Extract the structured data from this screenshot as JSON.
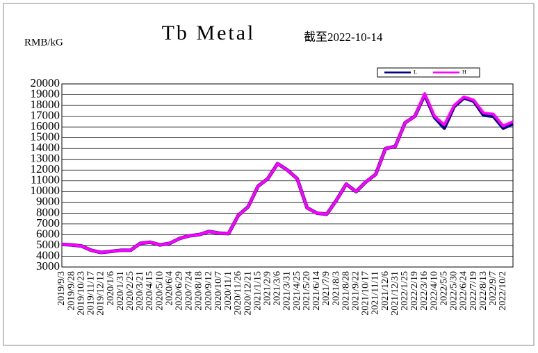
{
  "chart_data": {
    "type": "line",
    "title": "Tb Metal",
    "subtitle": "截至2022-10-14",
    "y_label": "RMB/kG",
    "categories": [
      "2019/9/3",
      "2019/9/28",
      "2019/10/23",
      "2019/11/17",
      "2019/12/12",
      "2020/1/6",
      "2020/1/31",
      "2020/2/25",
      "2020/3/21",
      "2020/4/15",
      "2020/5/10",
      "2020/6/4",
      "2020/6/29",
      "2020/7/24",
      "2020/8/18",
      "2020/9/12",
      "2020/10/7",
      "2020/11/1",
      "2020/11/26",
      "2020/12/21",
      "2021/1/15",
      "2021/2/9",
      "2021/3/6",
      "2021/3/31",
      "2021/4/25",
      "2021/5/20",
      "2021/6/14",
      "2021/7/9",
      "2021/8/3",
      "2021/8/28",
      "2021/9/22",
      "2021/10/17",
      "2021/11/11",
      "2021/12/6",
      "2021/12/31",
      "2022/1/25",
      "2022/2/19",
      "2022/3/16",
      "2022/4/10",
      "2022/5/5",
      "2022/5/30",
      "2022/6/24",
      "2022/7/19",
      "2022/8/13",
      "2022/9/7",
      "2022/10/2",
      null
    ],
    "series": [
      {
        "name": "L",
        "color": "#000080",
        "values": [
          5100,
          5050,
          4950,
          4550,
          4350,
          4450,
          4550,
          4550,
          5200,
          5300,
          5050,
          5200,
          5650,
          5900,
          6000,
          6300,
          6150,
          6100,
          7800,
          8600,
          10500,
          11200,
          12600,
          12000,
          11200,
          8500,
          8000,
          7900,
          9200,
          10700,
          10000,
          10900,
          11600,
          14000,
          14200,
          16400,
          17000,
          19000,
          16900,
          15900,
          17900,
          18700,
          18400,
          17100,
          17000,
          15900,
          16300
        ]
      },
      {
        "name": "H",
        "color": "#ff00ff",
        "values": [
          5100,
          5050,
          4950,
          4550,
          4350,
          4450,
          4550,
          4550,
          5200,
          5300,
          5050,
          5200,
          5650,
          5900,
          6000,
          6300,
          6150,
          6100,
          7800,
          8600,
          10500,
          11200,
          12600,
          12000,
          11200,
          8500,
          8000,
          7900,
          9200,
          10700,
          10000,
          10900,
          11600,
          14000,
          14200,
          16400,
          17000,
          19100,
          17000,
          16200,
          18000,
          18800,
          18500,
          17300,
          17200,
          16100,
          16500
        ]
      }
    ],
    "ylim": [
      3000,
      20000
    ],
    "yticks": [
      3000,
      4000,
      5000,
      6000,
      7000,
      8000,
      9000,
      10000,
      11000,
      12000,
      13000,
      14000,
      15000,
      16000,
      17000,
      18000,
      19000,
      20000
    ],
    "grid": true,
    "legend": "top-right"
  }
}
